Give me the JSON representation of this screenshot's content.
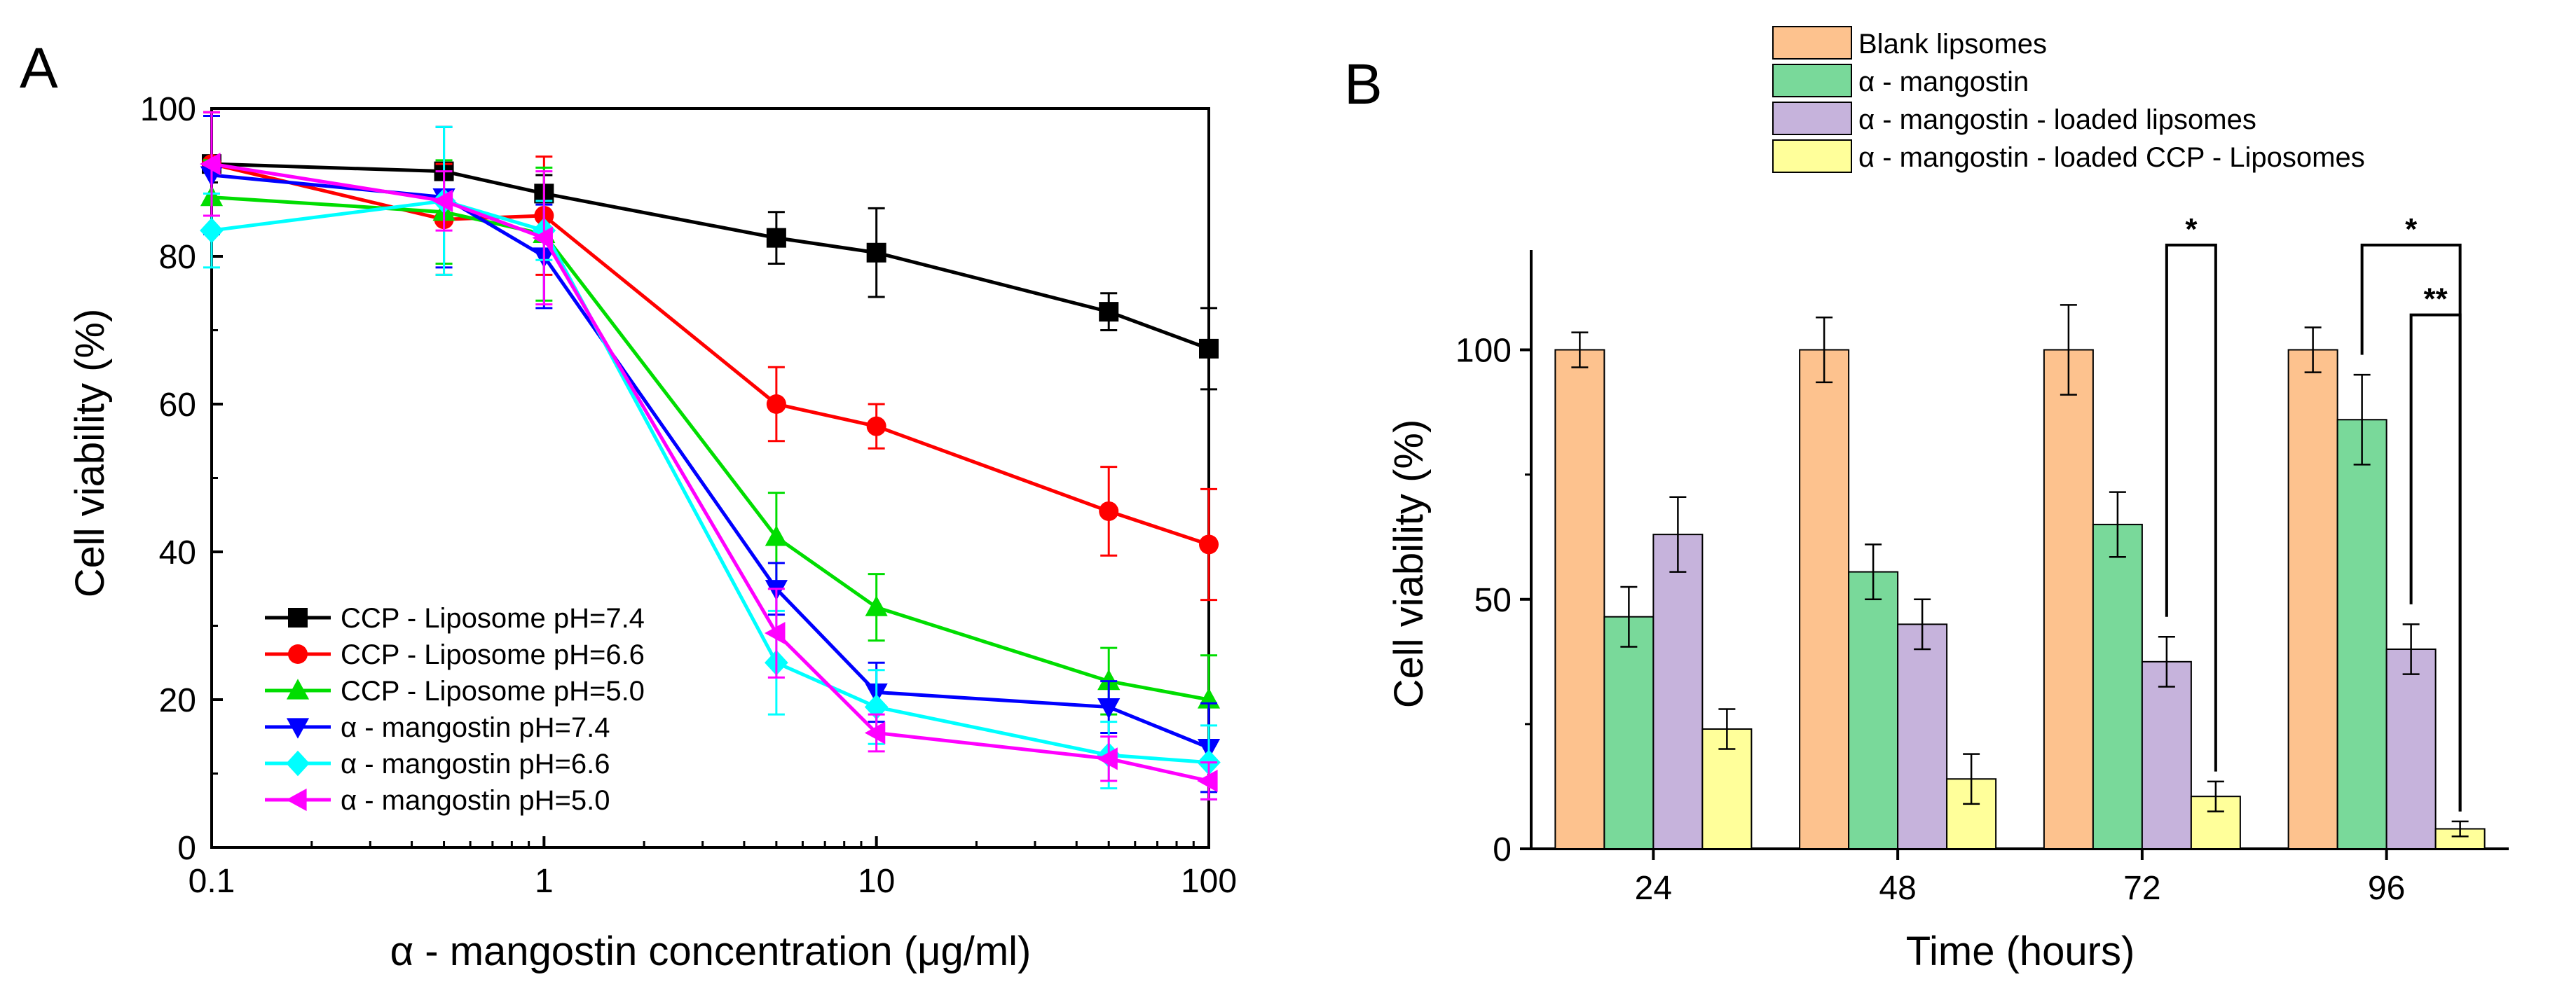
{
  "chart_data": [
    {
      "panel_label": "A",
      "type": "line",
      "title": "",
      "xlabel": "α - mangostin concentration (μg/ml)",
      "ylabel": "Cell viability (%)",
      "xscale": "log",
      "xlim": [
        0.1,
        100
      ],
      "ylim": [
        0,
        100
      ],
      "x_ticks": [
        0.1,
        1,
        10,
        100
      ],
      "x_tick_labels": [
        "0.1",
        "1",
        "10",
        "100"
      ],
      "y_ticks": [
        0,
        20,
        40,
        60,
        80,
        100
      ],
      "y_tick_labels": [
        "0",
        "20",
        "40",
        "60",
        "80",
        "100"
      ],
      "legend_position": "bottom-left",
      "x": [
        0.1,
        0.5,
        1,
        5,
        10,
        50,
        100
      ],
      "series": [
        {
          "name": "CCP - Liposome pH=7.4",
          "color": "#000000",
          "marker": "square",
          "values": [
            92.5,
            91.5,
            88.5,
            82.5,
            80.5,
            72.5,
            67.5
          ],
          "errors": [
            7,
            6,
            2.5,
            3.5,
            6,
            2.5,
            5.5
          ]
        },
        {
          "name": "CCP - Liposome pH=6.6",
          "color": "#ff0000",
          "marker": "circle",
          "values": [
            92.5,
            85,
            85.5,
            60,
            57,
            45.5,
            41
          ],
          "errors": [
            7,
            7.5,
            8,
            5,
            3,
            6,
            7.5
          ]
        },
        {
          "name": "CCP - Liposome pH=5.0",
          "color": "#00dd00",
          "marker": "triangle-up",
          "values": [
            88,
            86,
            83,
            42,
            32.5,
            22.5,
            20
          ],
          "errors": [
            5,
            7,
            9,
            6,
            4.5,
            4.5,
            6
          ]
        },
        {
          "name": "α - mangostin pH=7.4",
          "color": "#0000ff",
          "marker": "triangle-down",
          "values": [
            91,
            88,
            80,
            35,
            21,
            19,
            13.5
          ],
          "errors": [
            8,
            9.5,
            7,
            3.5,
            4,
            3.5,
            6
          ]
        },
        {
          "name": "α - mangostin pH=6.6",
          "color": "#00ffff",
          "marker": "diamond",
          "values": [
            83.5,
            87.5,
            83.5,
            25,
            19,
            12.5,
            11.5
          ],
          "errors": [
            5,
            10,
            4,
            7,
            5,
            4.5,
            5
          ]
        },
        {
          "name": "α - mangostin pH=5.0",
          "color": "#ff00ff",
          "marker": "triangle-left",
          "values": [
            92.5,
            87.5,
            82.5,
            29,
            15.5,
            12,
            9
          ],
          "errors": [
            7,
            4,
            9,
            6,
            2.5,
            3,
            2.5
          ]
        }
      ]
    },
    {
      "panel_label": "B",
      "type": "bar",
      "title": "",
      "xlabel": "Time (hours)",
      "ylabel": "Cell viability (%)",
      "ylim": [
        0,
        120
      ],
      "y_ticks": [
        0,
        50,
        100
      ],
      "y_tick_labels": [
        "0",
        "50",
        "100"
      ],
      "categories": [
        "24",
        "48",
        "72",
        "96"
      ],
      "legend_position": "top",
      "series": [
        {
          "name": "Blank lipsomes",
          "color": "#fdc28e",
          "values": [
            100,
            100,
            100,
            100
          ],
          "errors": [
            3.5,
            6.5,
            9,
            4.5
          ]
        },
        {
          "name": "α - mangostin",
          "color": "#79d99a",
          "values": [
            46.5,
            55.5,
            65,
            86
          ],
          "errors": [
            6,
            5.5,
            6.5,
            9
          ]
        },
        {
          "name": "α - mangostin - loaded lipsomes",
          "color": "#c6b3dc",
          "values": [
            63,
            45,
            37.5,
            40
          ],
          "errors": [
            7.5,
            5,
            5,
            5
          ]
        },
        {
          "name": "α - mangostin - loaded CCP - Liposomes",
          "color": "#ffff9a",
          "values": [
            24,
            14,
            10.5,
            4
          ],
          "errors": [
            4,
            5,
            3,
            1.5
          ]
        }
      ],
      "annotations": [
        {
          "label": "*",
          "category": "72",
          "from_series": 2,
          "to_series": 3,
          "level": 121
        },
        {
          "label": "*",
          "category": "96",
          "from_series": 1,
          "to_series": 3,
          "level": 121
        },
        {
          "label": "**",
          "category": "96",
          "from_series": 2,
          "to_series": 3,
          "level": 107
        }
      ]
    }
  ]
}
